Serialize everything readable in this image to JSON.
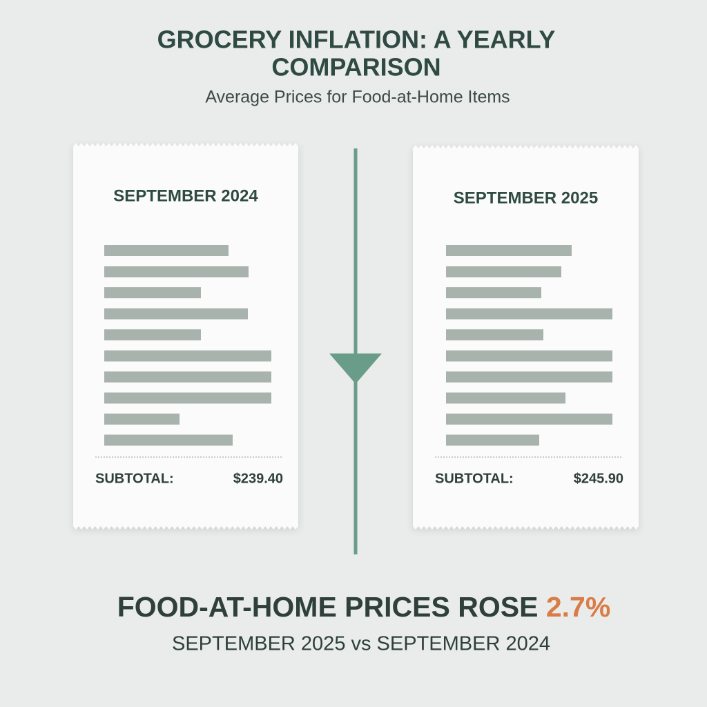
{
  "header": {
    "title_line1": "GROCERY INFLATION: A YEARLY",
    "title_line2": "COMPARISON",
    "subtitle": "Average Prices for Food-at-Home Items"
  },
  "receipts": [
    {
      "title": "SEPTEMBER 2024",
      "subtotal_label": "SUBTOTAL:",
      "subtotal_value": "$239.40"
    },
    {
      "title": "SEPTEMBER 2025",
      "subtotal_label": "SUBTOTAL:",
      "subtotal_value": "$245.90"
    }
  ],
  "footer": {
    "headline_lead": "FOOD-AT-HOME PRICES ROSE",
    "headline_highlight": "2.7%",
    "comparison": "SEPTEMBER 2025 vs SEPTEMBER 2024"
  }
}
